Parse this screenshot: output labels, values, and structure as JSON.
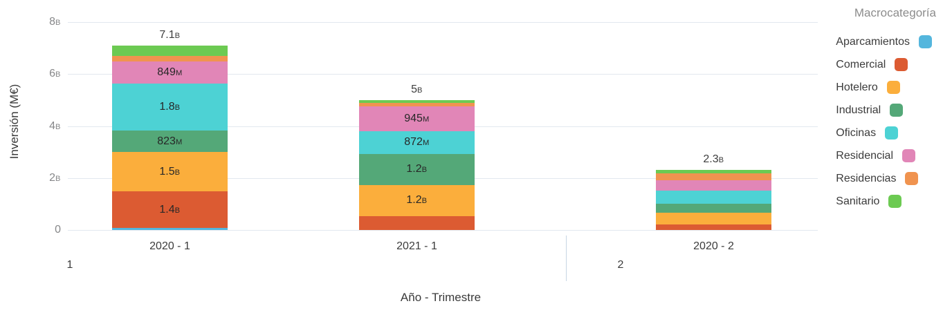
{
  "chart_data": {
    "type": "bar",
    "stacked": true,
    "grid": true,
    "legend_position": "right",
    "y_axis": {
      "title": "Inversión (M€)",
      "unit": "M€",
      "range_m": [
        0,
        8000
      ],
      "ticks": [
        {
          "value_m": 0,
          "label": "0"
        },
        {
          "value_m": 2000,
          "label": "2B"
        },
        {
          "value_m": 4000,
          "label": "4B"
        },
        {
          "value_m": 6000,
          "label": "6B"
        },
        {
          "value_m": 8000,
          "label": "8B"
        }
      ]
    },
    "x_axis": {
      "title": "Año - Trimestre",
      "group_labels": [
        "1",
        "2"
      ]
    },
    "legend": {
      "title": "Macrocategoría",
      "items": [
        {
          "label": "Aparcamientos",
          "color": "#54b6dd"
        },
        {
          "label": "Comercial",
          "color": "#dc5b32"
        },
        {
          "label": "Hotelero",
          "color": "#fbae3c"
        },
        {
          "label": "Industrial",
          "color": "#54a878"
        },
        {
          "label": "Oficinas",
          "color": "#4dd2d4"
        },
        {
          "label": "Residencial",
          "color": "#e186b7"
        },
        {
          "label": "Residencias",
          "color": "#f0934f"
        },
        {
          "label": "Sanitario",
          "color": "#6cca52"
        }
      ]
    },
    "categories": [
      "2020 - 1",
      "2021 - 1",
      "2020 - 2"
    ],
    "bars": [
      {
        "category": "2020 - 1",
        "group": "1",
        "total_label": "7.1B",
        "segments": [
          {
            "name": "Aparcamientos",
            "value_m": 70,
            "label": null
          },
          {
            "name": "Comercial",
            "value_m": 1420,
            "label": "1.4B"
          },
          {
            "name": "Hotelero",
            "value_m": 1510,
            "label": "1.5B"
          },
          {
            "name": "Industrial",
            "value_m": 823,
            "label": "823M"
          },
          {
            "name": "Oficinas",
            "value_m": 1820,
            "label": "1.8B"
          },
          {
            "name": "Residencial",
            "value_m": 849,
            "label": "849M"
          },
          {
            "name": "Residencias",
            "value_m": 200,
            "label": null
          },
          {
            "name": "Sanitario",
            "value_m": 408,
            "label": null
          }
        ]
      },
      {
        "category": "2021 - 1",
        "group": "1",
        "total_label": "5B",
        "segments": [
          {
            "name": "Aparcamientos",
            "value_m": 0,
            "label": null
          },
          {
            "name": "Comercial",
            "value_m": 533,
            "label": null
          },
          {
            "name": "Hotelero",
            "value_m": 1200,
            "label": "1.2B"
          },
          {
            "name": "Industrial",
            "value_m": 1200,
            "label": "1.2B"
          },
          {
            "name": "Oficinas",
            "value_m": 872,
            "label": "872M"
          },
          {
            "name": "Residencial",
            "value_m": 945,
            "label": "945M"
          },
          {
            "name": "Residencias",
            "value_m": 150,
            "label": null
          },
          {
            "name": "Sanitario",
            "value_m": 100,
            "label": null
          }
        ]
      },
      {
        "category": "2020 - 2",
        "group": "2",
        "total_label": "2.3B",
        "segments": [
          {
            "name": "Aparcamientos",
            "value_m": 0,
            "label": null
          },
          {
            "name": "Comercial",
            "value_m": 200,
            "label": null
          },
          {
            "name": "Hotelero",
            "value_m": 470,
            "label": null
          },
          {
            "name": "Industrial",
            "value_m": 345,
            "label": null
          },
          {
            "name": "Oficinas",
            "value_m": 500,
            "label": null
          },
          {
            "name": "Residencial",
            "value_m": 405,
            "label": null
          },
          {
            "name": "Residencias",
            "value_m": 250,
            "label": null
          },
          {
            "name": "Sanitario",
            "value_m": 130,
            "label": null
          }
        ]
      }
    ]
  }
}
